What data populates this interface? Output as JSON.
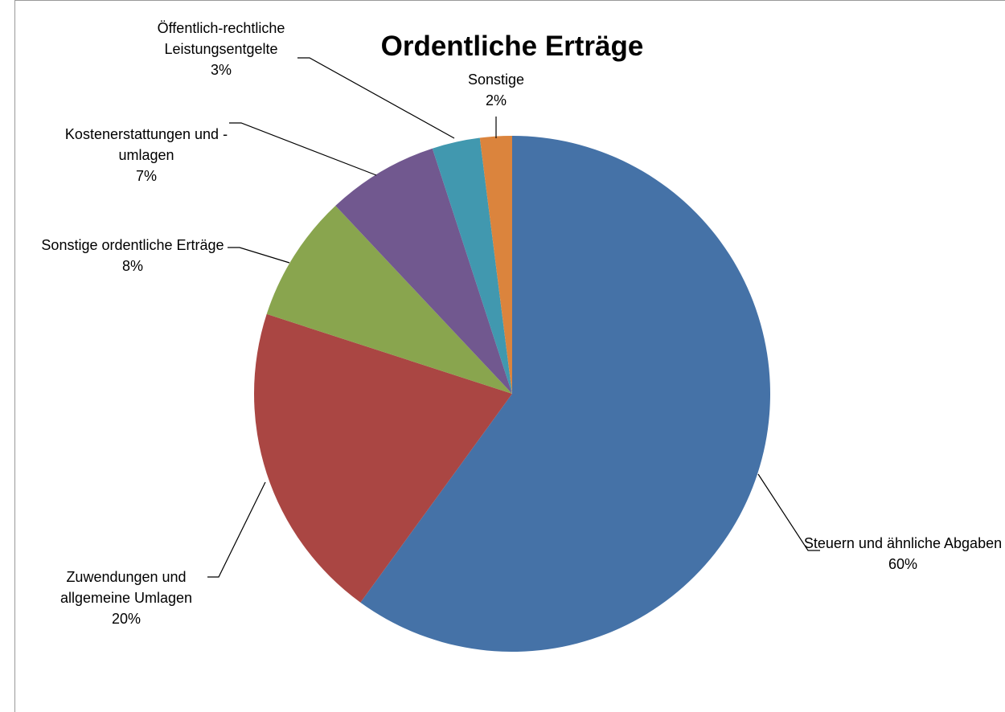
{
  "chart_data": {
    "type": "pie",
    "title": "Ordentliche Erträge",
    "categories": [
      "Steuern und ähnliche Abgaben",
      "Zuwendungen und allgemeine Umlagen",
      "Sonstige ordentliche Erträge",
      "Kostenerstattungen und -umlagen",
      "Öffentlich-rechtliche Leistungsentgelte",
      "Sonstige"
    ],
    "values": [
      60,
      20,
      8,
      7,
      3,
      2
    ],
    "value_labels": [
      "60%",
      "20%",
      "8%",
      "7%",
      "3%",
      "2%"
    ],
    "colors": [
      "#4572a7",
      "#aa4643",
      "#89a54e",
      "#71588f",
      "#4198af",
      "#db843d"
    ]
  }
}
